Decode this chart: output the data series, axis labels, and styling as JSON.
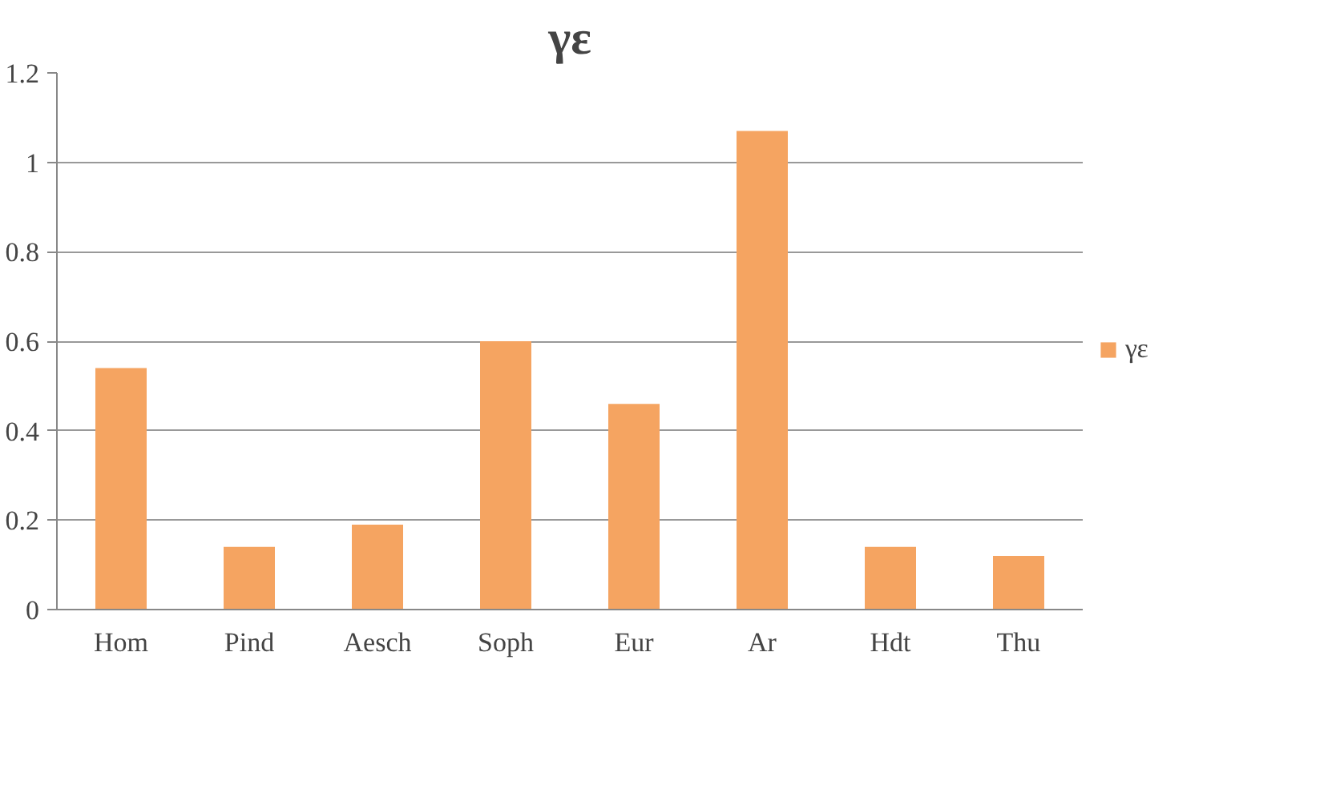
{
  "chart_data": {
    "type": "bar",
    "title": "γε",
    "categories": [
      "Hom",
      "Pind",
      "Aesch",
      "Soph",
      "Eur",
      "Ar",
      "Hdt",
      "Thu"
    ],
    "series": [
      {
        "name": "γε",
        "color": "#f5a461",
        "values": [
          0.54,
          0.14,
          0.19,
          0.6,
          0.46,
          1.07,
          0.14,
          0.12
        ]
      }
    ],
    "ylim": [
      0,
      1.2
    ],
    "yticks": [
      0,
      0.2,
      0.4,
      0.6,
      0.8,
      1,
      1.2
    ],
    "grid": "y",
    "legend": "right"
  }
}
